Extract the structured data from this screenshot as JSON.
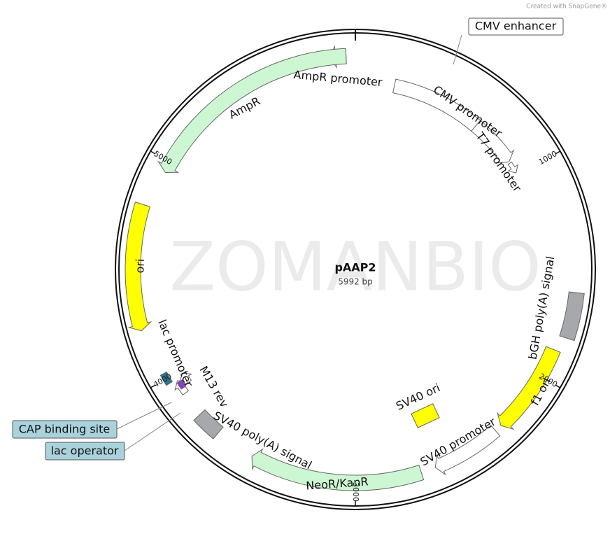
{
  "credit": "Created with SnapGene®",
  "watermark": "ZOMANBIO",
  "plasmid": {
    "name": "pAAP2",
    "size": "5992 bp"
  },
  "ticks": [
    "1000",
    "2000",
    "3000",
    "4000",
    "5000"
  ],
  "features": {
    "cmv_enhancer": "CMV enhancer",
    "cmv_promoter": "CMV promoter",
    "t7_promoter": "T7 promoter",
    "ampr_promoter": "AmpR promoter",
    "ampr": "AmpR",
    "ori": "ori",
    "bgh": "bGH poly(A) signal",
    "f1_ori": "f1 ori",
    "sv40_promoter": "SV40 promoter",
    "neor": "NeoR/KanR",
    "sv40_polya": "SV40 poly(A) signal",
    "sv40_ori": "SV40 ori",
    "lac_promoter": "lac promoter",
    "m13_rev": "M13 rev",
    "cap_site": "CAP binding site",
    "lac_operator": "lac operator"
  }
}
